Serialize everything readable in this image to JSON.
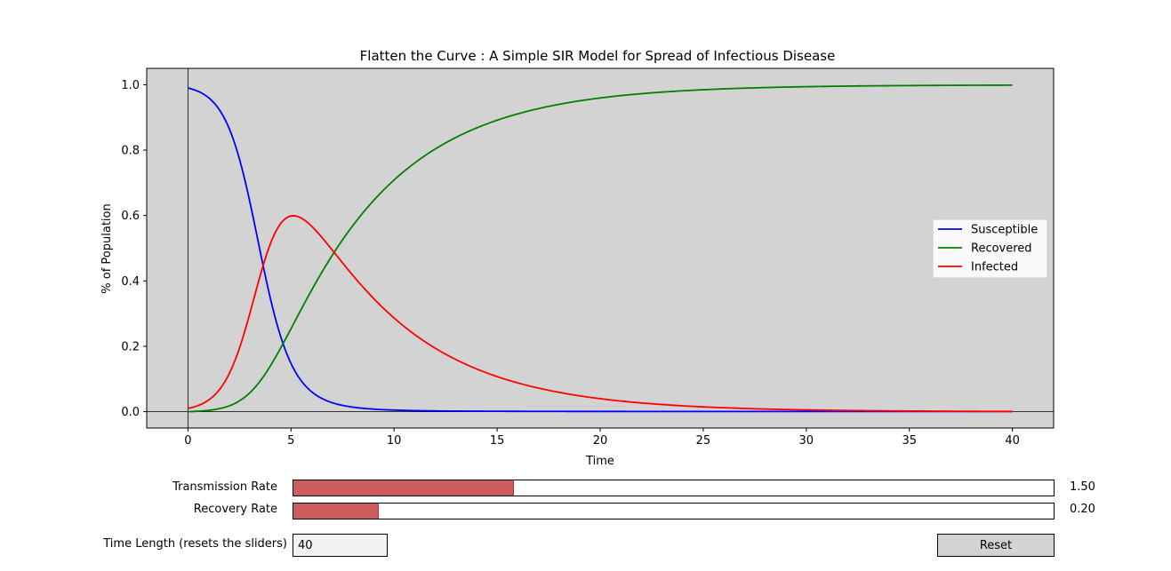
{
  "chart_data": {
    "type": "line",
    "title": "Flatten the Curve : A Simple SIR Model for Spread of Infectious Disease",
    "xlabel": "Time",
    "ylabel": "% of Population",
    "xlim": [
      -2,
      42
    ],
    "ylim": [
      -0.05,
      1.05
    ],
    "xticks": [
      0,
      5,
      10,
      15,
      20,
      25,
      30,
      35,
      40
    ],
    "yticks": [
      0.0,
      0.2,
      0.4,
      0.6,
      0.8,
      1.0
    ],
    "xtick_labels": [
      "0",
      "5",
      "10",
      "15",
      "20",
      "25",
      "30",
      "35",
      "40"
    ],
    "ytick_labels": [
      "0.0",
      "0.2",
      "0.4",
      "0.6",
      "0.8",
      "1.0"
    ],
    "background": "#d3d3d3",
    "grid": false,
    "reference_lines": {
      "x": 0,
      "y": 0
    },
    "legend_position": "center-right",
    "model": {
      "beta": 1.5,
      "gamma": 0.2,
      "S0": 0.99,
      "I0": 0.01,
      "R0": 0.0,
      "t_max": 40
    },
    "series": [
      {
        "name": "Susceptible",
        "color": "#0000ff",
        "key": "S"
      },
      {
        "name": "Recovered",
        "color": "#008000",
        "key": "R"
      },
      {
        "name": "Infected",
        "color": "#ff0000",
        "key": "I"
      }
    ]
  },
  "controls": {
    "transmission": {
      "label": "Transmission Rate",
      "value_text": "1.50",
      "value": 1.5,
      "min": 0,
      "max": 5.2
    },
    "recovery": {
      "label": "Recovery Rate",
      "value_text": "0.20",
      "value": 0.2,
      "min": 0,
      "max": 1.8
    },
    "time_length": {
      "label": "Time Length (resets the sliders)",
      "value": "40"
    },
    "reset": {
      "label": "Reset"
    }
  }
}
